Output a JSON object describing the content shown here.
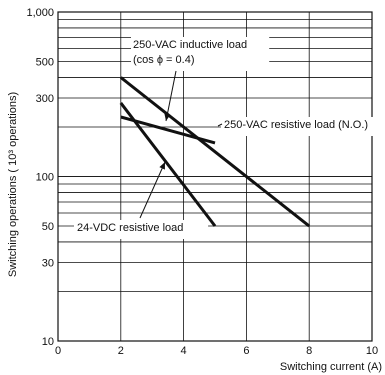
{
  "chart_data": {
    "type": "line",
    "xlabel": "Switching current (A)",
    "ylabel": "Switching operations ( 10³ operations)",
    "xlim": [
      0,
      10
    ],
    "ylim": [
      10,
      1000
    ],
    "yscale": "log",
    "grid": true,
    "x_ticks": [
      "0",
      "2",
      "4",
      "6",
      "8",
      "10"
    ],
    "y_ticks": [
      "10",
      "30",
      "50",
      "100",
      "300",
      "500",
      "1,000"
    ],
    "series": [
      {
        "name": "250-VAC inductive load (cos ϕ = 0.4)",
        "x": [
          2,
          5
        ],
        "y": [
          230,
          160
        ]
      },
      {
        "name": "250-VAC resistive load (N.O.)",
        "x": [
          2,
          8
        ],
        "y": [
          400,
          50
        ]
      },
      {
        "name": "24-VDC resistive load",
        "x": [
          2,
          5
        ],
        "y": [
          280,
          50
        ]
      }
    ],
    "annotations": [
      {
        "id": "ann-inductive",
        "lines": [
          "250-VAC inductive load",
          "(cos ϕ = 0.4)"
        ]
      },
      {
        "id": "ann-resistive",
        "lines": [
          "250-VAC resistive load (N.O.)"
        ]
      },
      {
        "id": "ann-dc",
        "lines": [
          "24-VDC resistive load"
        ]
      }
    ]
  }
}
